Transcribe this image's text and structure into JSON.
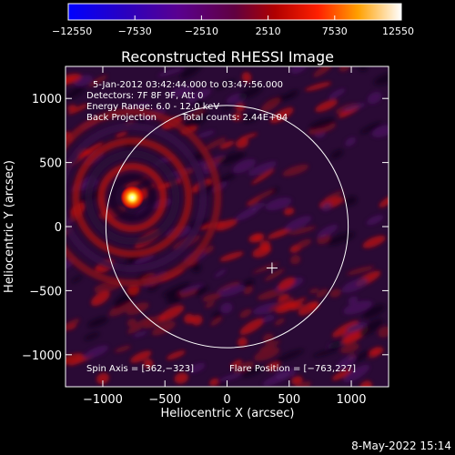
{
  "chart_data": {
    "type": "heatmap",
    "title": "Reconstructed RHESSI Image",
    "xlabel": "Heliocentric X (arcsec)",
    "ylabel": "Heliocentric Y (arcsec)",
    "xlim": [
      -1300,
      1300
    ],
    "ylim": [
      -1250,
      1250
    ],
    "x_ticks": [
      -1000,
      -500,
      0,
      500,
      1000
    ],
    "x_tick_labels": [
      "−1000",
      "−500",
      "0",
      "500",
      "1000"
    ],
    "y_ticks": [
      -1000,
      -500,
      0,
      500,
      1000
    ],
    "y_tick_labels": [
      "−1000",
      "−500",
      "0",
      "500",
      "1000"
    ],
    "colorbar": {
      "range": [
        -12550,
        12550
      ],
      "ticks": [
        -12550,
        -7530,
        -2510,
        2510,
        7530,
        12550
      ],
      "tick_labels": [
        "−12550",
        "−7530",
        "−2510",
        "2510",
        "7530",
        "12550"
      ],
      "colormap": "blue-purple-red-yellow-white"
    },
    "annotations": {
      "time_range": "5-Jan-2012 03:42:44.000 to 03:47:56.000",
      "detectors": "Detectors: 7F 8F 9F, Att 0",
      "energy_range": "Energy Range: 6.0 - 12.0 keV",
      "method": "Back Projection",
      "total_counts": "Total counts: 2.44E+04",
      "spin_axis": "Spin Axis = [362,−323]",
      "flare_position": "Flare Position = [−763,227]"
    },
    "solar_limb_radius_arcsec": 975,
    "spin_axis_xy": [
      362,
      -323
    ],
    "flare_position_xy": [
      -763,
      227
    ]
  },
  "footer": {
    "date": "8-May-2022 15:14"
  },
  "colors": {
    "background": "#000000",
    "foreground": "#ffffff",
    "negative": "#3a0050",
    "positive": "#d01010",
    "peak": "#ffff60"
  }
}
